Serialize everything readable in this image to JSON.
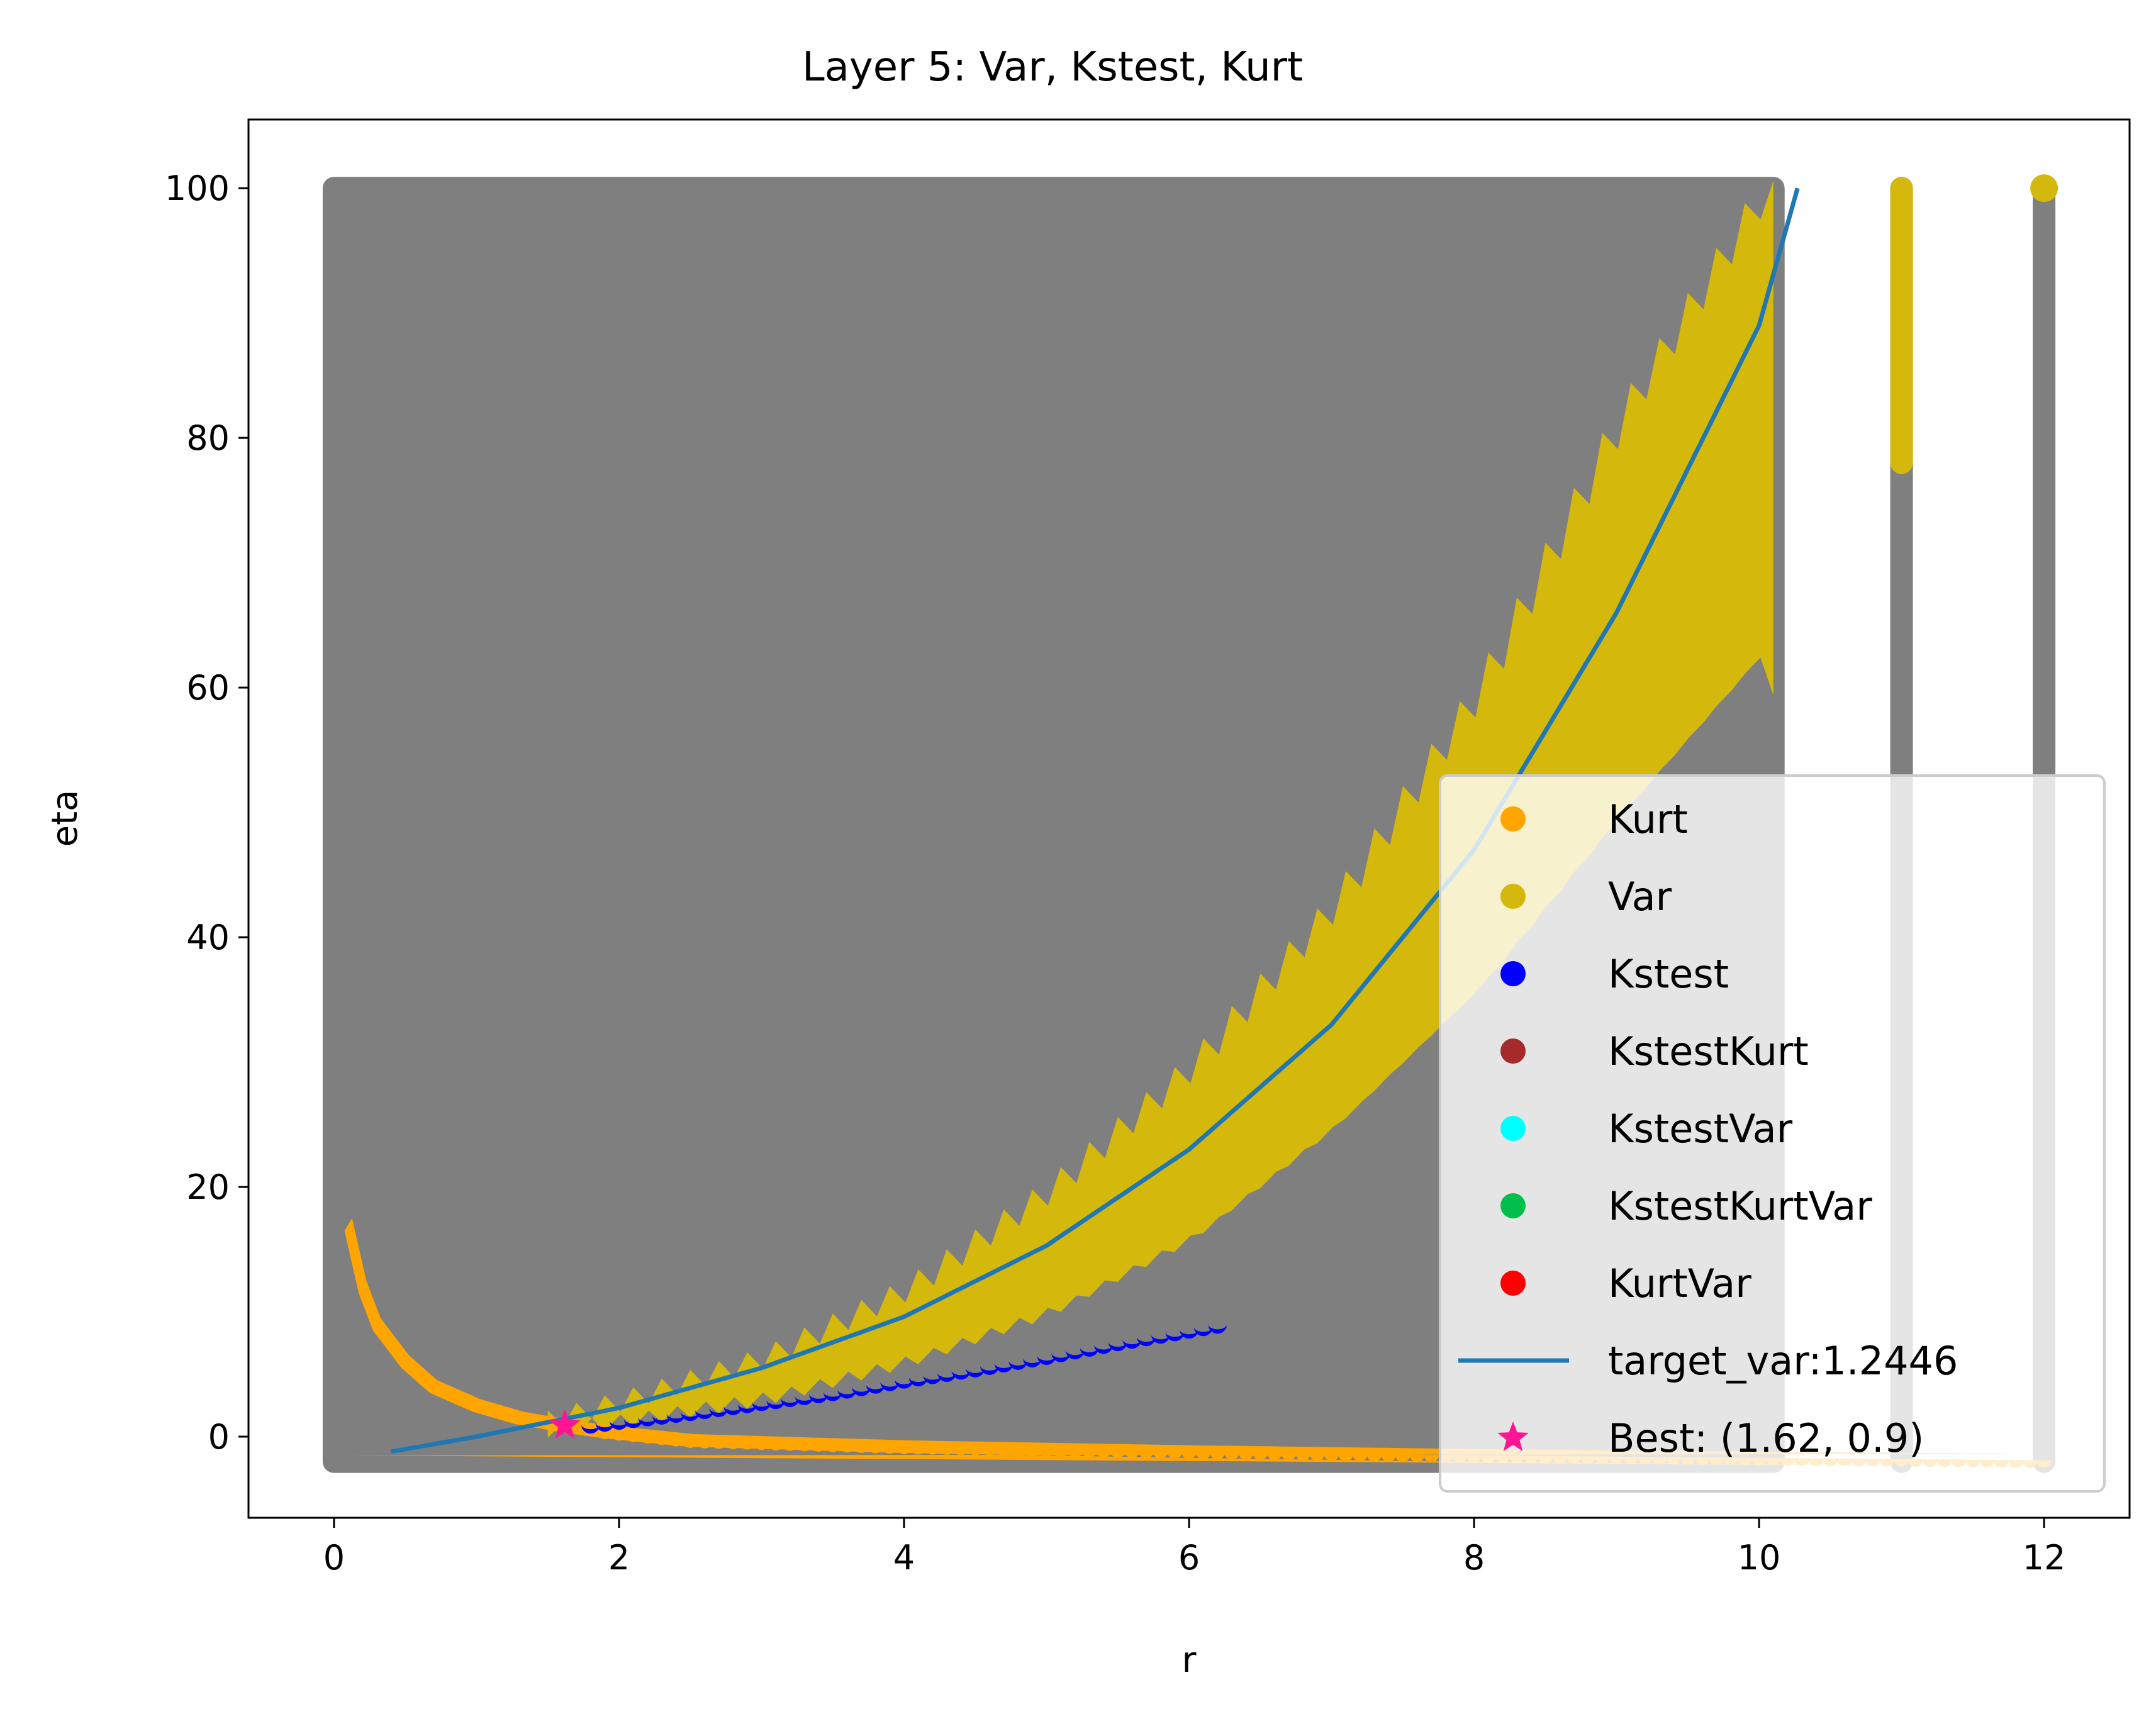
{
  "chart_data": {
    "type": "scatter",
    "title": "Layer 5: Var, Kstest, Kurt",
    "xlabel": "r",
    "ylabel": "eta",
    "xlim": [
      -0.6,
      12.6
    ],
    "ylim": [
      -6.5,
      105.5
    ],
    "xticks": [
      0,
      2,
      4,
      6,
      8,
      10,
      12
    ],
    "yticks": [
      0,
      20,
      40,
      60,
      80,
      100
    ],
    "grid": false,
    "legend_position": "lower-right",
    "series": [
      {
        "name": "Kurt",
        "color": "#ffa500",
        "marker": "circle",
        "description_points": [
          [
            0.1,
            17
          ],
          [
            0.2,
            12
          ],
          [
            0.3,
            9
          ],
          [
            0.5,
            6
          ],
          [
            0.7,
            4
          ],
          [
            1.0,
            2.5
          ],
          [
            1.3,
            1.5
          ],
          [
            1.6,
            0.9
          ],
          [
            1.9,
            0.4
          ],
          [
            2.5,
            -0.3
          ],
          [
            4,
            -0.8
          ],
          [
            6,
            -1.2
          ],
          [
            8,
            -1.5
          ],
          [
            10,
            -1.7
          ],
          [
            12,
            -1.9
          ]
        ]
      },
      {
        "name": "Var",
        "color": "#d4b80c",
        "marker": "circle",
        "band": {
          "x": [
            1.5,
            2,
            3,
            4,
            5,
            6,
            7,
            8,
            9,
            10,
            10.1
          ],
          "upper": [
            1.5,
            3,
            6.5,
            12,
            20,
            30,
            43,
            60,
            82,
            100,
            100
          ],
          "lower": [
            0.5,
            1.2,
            3,
            6,
            10,
            16,
            25,
            36,
            50,
            63,
            60
          ]
        },
        "extra_column": {
          "x": 11,
          "eta_min": 78,
          "eta_max": 100
        }
      },
      {
        "name": "Kstest",
        "color": "#0000ff",
        "marker": "circle",
        "x": [
          1.8,
          2.0,
          2.5,
          3.0,
          3.5,
          4.0,
          4.5,
          5.0,
          5.5,
          6.0,
          6.2
        ],
        "y": [
          1.0,
          1.3,
          2.0,
          2.8,
          3.6,
          4.6,
          5.5,
          6.5,
          7.6,
          8.6,
          9.0
        ]
      },
      {
        "name": "KstestKurt",
        "color": "#a52a2a",
        "marker": "circle",
        "x": [],
        "y": []
      },
      {
        "name": "KstestVar",
        "color": "#00ffff",
        "marker": "circle",
        "x": [],
        "y": []
      },
      {
        "name": "KstestKurtVar",
        "color": "#00c04b",
        "marker": "circle",
        "x": [],
        "y": []
      },
      {
        "name": "KurtVar",
        "color": "#ff0000",
        "marker": "circle",
        "x": [],
        "y": []
      },
      {
        "name": "target_var:1.2446",
        "color": "#1f77b4",
        "marker": "line",
        "x": [
          0.4,
          1,
          2,
          3,
          4,
          5,
          6,
          7,
          8,
          9,
          10,
          10.27
        ],
        "y": [
          -1.2,
          0.0,
          2.3,
          5.5,
          9.6,
          15.3,
          23,
          33,
          47,
          66,
          89,
          100
        ]
      },
      {
        "name": "Best: (1.62, 0.9)",
        "color": "#ff1493",
        "marker": "star",
        "x": [
          1.62
        ],
        "y": [
          0.9
        ]
      }
    ],
    "background_grid": {
      "color": "#7f7f7f",
      "description": "Gray scatter points covering the full search grid",
      "regions": [
        {
          "x_min": 0,
          "x_max": 10.1,
          "eta_min": -2,
          "eta_max": 100
        },
        {
          "x_min": 11,
          "x_max": 11,
          "eta_min": -2,
          "eta_max": 100
        },
        {
          "x_min": 12,
          "x_max": 12,
          "eta_min": -2,
          "eta_max": 100
        }
      ]
    }
  },
  "legend": {
    "entries": [
      {
        "label": "Kurt",
        "color": "#ffa500",
        "marker": "circle"
      },
      {
        "label": "Var",
        "color": "#d4b80c",
        "marker": "circle"
      },
      {
        "label": "Kstest",
        "color": "#0000ff",
        "marker": "circle"
      },
      {
        "label": "KstestKurt",
        "color": "#a52a2a",
        "marker": "circle"
      },
      {
        "label": "KstestVar",
        "color": "#00ffff",
        "marker": "circle"
      },
      {
        "label": "KstestKurtVar",
        "color": "#00c04b",
        "marker": "circle"
      },
      {
        "label": "KurtVar",
        "color": "#ff0000",
        "marker": "circle"
      },
      {
        "label": "target_var:1.2446",
        "color": "#1f77b4",
        "marker": "line"
      },
      {
        "label": "Best: (1.62, 0.9)",
        "color": "#ff1493",
        "marker": "star"
      }
    ]
  }
}
